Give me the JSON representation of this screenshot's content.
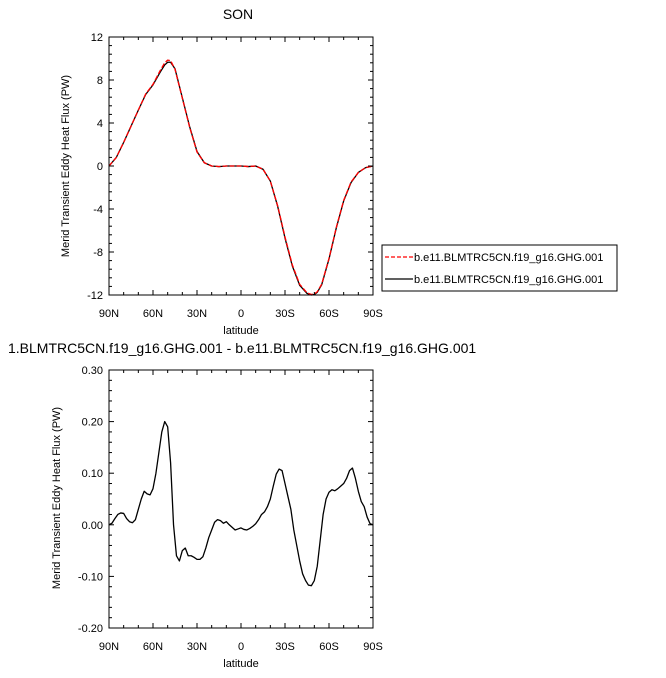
{
  "chart_data": [
    {
      "type": "line",
      "title": "SON",
      "xlabel": "latitude",
      "ylabel": "Merid Transient Eddy Heat Flux (PW)",
      "xlim": [
        90,
        -90
      ],
      "ylim": [
        -12,
        12
      ],
      "xticks": [
        90,
        60,
        30,
        0,
        -30,
        -60,
        -90
      ],
      "xtick_labels": [
        "90N",
        "60N",
        "30N",
        "0",
        "30S",
        "60S",
        "90S"
      ],
      "yticks": [
        -12,
        -8,
        -4,
        0,
        4,
        8,
        12
      ],
      "ytick_labels": [
        "-12",
        "-8",
        "-4",
        "0",
        "4",
        "8",
        "12"
      ],
      "legend": "right",
      "series": [
        {
          "name": "b.e11.BLMTRC5CN.f19_g16.GHG.001",
          "color": "#ff0000",
          "style": "dashed",
          "x": [
            90,
            85,
            80,
            75,
            70,
            65,
            60,
            55,
            52,
            50,
            48,
            45,
            40,
            35,
            30,
            25,
            20,
            15,
            10,
            5,
            0,
            -5,
            -10,
            -15,
            -20,
            -25,
            -30,
            -35,
            -40,
            -45,
            -48,
            -50,
            -52,
            -55,
            -60,
            -65,
            -70,
            -75,
            -80,
            -85,
            -90
          ],
          "y": [
            0,
            0.8,
            2.2,
            3.7,
            5.2,
            6.7,
            7.6,
            8.9,
            9.6,
            9.85,
            9.8,
            9.0,
            6.3,
            3.6,
            1.3,
            0.3,
            0.0,
            -0.05,
            0.0,
            0.0,
            0.0,
            -0.05,
            0.0,
            -0.3,
            -1.4,
            -3.7,
            -6.6,
            -9.2,
            -11.0,
            -11.8,
            -11.95,
            -11.9,
            -11.7,
            -11.0,
            -8.6,
            -5.7,
            -3.2,
            -1.5,
            -0.6,
            -0.15,
            0
          ]
        },
        {
          "name": "b.e11.BLMTRC5CN.f19_g16.GHG.001",
          "color": "#000000",
          "style": "solid",
          "x": [
            90,
            85,
            80,
            75,
            70,
            65,
            60,
            55,
            52,
            50,
            48,
            45,
            40,
            35,
            30,
            25,
            20,
            15,
            10,
            5,
            0,
            -5,
            -10,
            -15,
            -20,
            -25,
            -30,
            -35,
            -40,
            -45,
            -48,
            -50,
            -52,
            -55,
            -60,
            -65,
            -70,
            -75,
            -80,
            -85,
            -90
          ],
          "y": [
            0,
            0.8,
            2.2,
            3.7,
            5.2,
            6.65,
            7.55,
            8.75,
            9.4,
            9.65,
            9.65,
            9.05,
            6.35,
            3.65,
            1.35,
            0.3,
            0.0,
            -0.06,
            0.0,
            0.0,
            0.0,
            -0.05,
            0.0,
            -0.3,
            -1.4,
            -3.75,
            -6.7,
            -9.3,
            -11.1,
            -11.85,
            -12.0,
            -11.95,
            -11.75,
            -11.05,
            -8.65,
            -5.75,
            -3.25,
            -1.55,
            -0.6,
            -0.15,
            0
          ]
        }
      ]
    },
    {
      "type": "line",
      "title": "1.BLMTRC5CN.f19_g16.GHG.001 - b.e11.BLMTRC5CN.f19_g16.GHG.001",
      "xlabel": "latitude",
      "ylabel": "Merid Transient Eddy Heat Flux (PW)",
      "xlim": [
        90,
        -90
      ],
      "ylim": [
        -0.2,
        0.3
      ],
      "xticks": [
        90,
        60,
        30,
        0,
        -30,
        -60,
        -90
      ],
      "xtick_labels": [
        "90N",
        "60N",
        "30N",
        "0",
        "30S",
        "60S",
        "90S"
      ],
      "yticks": [
        -0.2,
        -0.1,
        0,
        0.1,
        0.2,
        0.3
      ],
      "ytick_labels": [
        "-0.20",
        "-0.10",
        "0.00",
        "0.10",
        "0.20",
        "0.30"
      ],
      "series": [
        {
          "color": "#000000",
          "style": "solid",
          "x": [
            90,
            88,
            86,
            84,
            82,
            80,
            78,
            76,
            74,
            72,
            70,
            68,
            66,
            64,
            62,
            60,
            58,
            56,
            54,
            52,
            50,
            48,
            46,
            44,
            42,
            40,
            38,
            36,
            34,
            32,
            30,
            28,
            26,
            24,
            22,
            20,
            18,
            16,
            14,
            12,
            10,
            8,
            6,
            4,
            2,
            0,
            -2,
            -4,
            -6,
            -8,
            -10,
            -12,
            -14,
            -16,
            -18,
            -20,
            -22,
            -24,
            -26,
            -28,
            -30,
            -32,
            -34,
            -36,
            -38,
            -40,
            -42,
            -44,
            -46,
            -48,
            -50,
            -52,
            -54,
            -56,
            -58,
            -60,
            -62,
            -64,
            -66,
            -68,
            -70,
            -72,
            -74,
            -76,
            -78,
            -80,
            -82,
            -84,
            -86,
            -88,
            -90
          ],
          "y": [
            0.0,
            0.003,
            0.012,
            0.02,
            0.023,
            0.022,
            0.012,
            0.006,
            0.004,
            0.01,
            0.03,
            0.05,
            0.065,
            0.06,
            0.058,
            0.07,
            0.1,
            0.14,
            0.18,
            0.2,
            0.19,
            0.12,
            0.0,
            -0.06,
            -0.07,
            -0.05,
            -0.045,
            -0.06,
            -0.06,
            -0.063,
            -0.067,
            -0.067,
            -0.062,
            -0.045,
            -0.025,
            -0.01,
            0.005,
            0.01,
            0.008,
            0.003,
            0.006,
            0.0,
            -0.005,
            -0.01,
            -0.008,
            -0.006,
            -0.009,
            -0.01,
            -0.007,
            -0.003,
            0.002,
            0.01,
            0.02,
            0.025,
            0.035,
            0.05,
            0.075,
            0.098,
            0.108,
            0.105,
            0.08,
            0.055,
            0.03,
            -0.01,
            -0.04,
            -0.07,
            -0.095,
            -0.108,
            -0.117,
            -0.118,
            -0.108,
            -0.08,
            -0.03,
            0.02,
            0.05,
            0.063,
            0.068,
            0.066,
            0.07,
            0.075,
            0.08,
            0.09,
            0.105,
            0.11,
            0.09,
            0.065,
            0.045,
            0.035,
            0.015,
            0.002,
            0.0
          ]
        }
      ]
    }
  ]
}
